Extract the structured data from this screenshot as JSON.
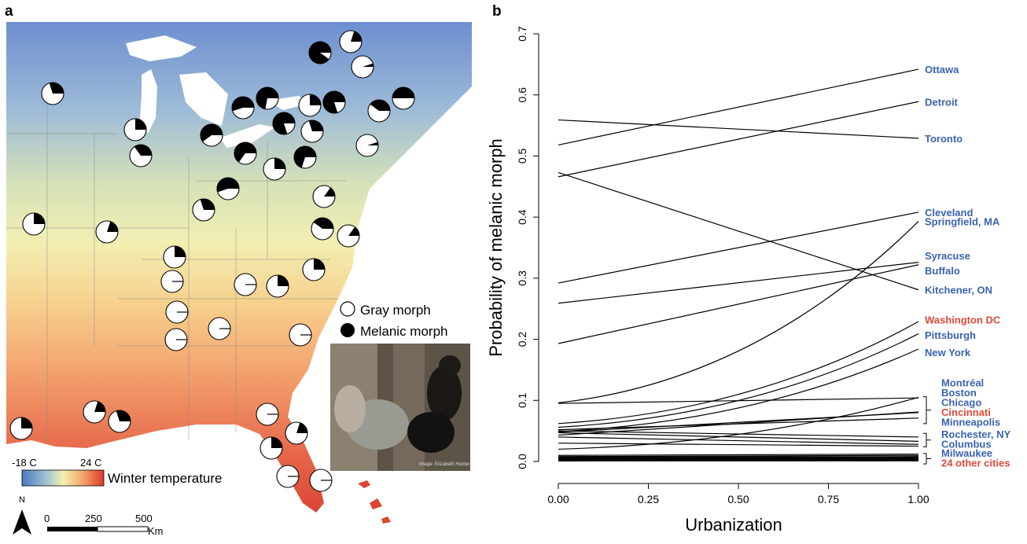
{
  "panel_a": {
    "letter": "a",
    "legend": {
      "gray_label": "Gray morph",
      "melanic_label": "Melanic morph"
    },
    "colorbar": {
      "min_label": "-18 C",
      "max_label": "24 C",
      "title": "Winter temperature",
      "colors": [
        "#4a78c0",
        "#f5f0b0",
        "#dd3a2a"
      ]
    },
    "north_label": "N",
    "scalebar": {
      "labels": [
        "0",
        "250",
        "500"
      ],
      "unit": "Km"
    },
    "photo_credit": "Image: Elizabeth Hunter",
    "sites_melanic_fraction": [
      0.9,
      0.2,
      0.05,
      0.72,
      0.55,
      0.6,
      0.8,
      0.25,
      0.8,
      0.4,
      0.5,
      0.3,
      0.05,
      0.65,
      0.25,
      0.7,
      0.55,
      0.3,
      0.15,
      0.3,
      0.25,
      0.35,
      0.4,
      0.15,
      0.2,
      0.25,
      0.25,
      0.2,
      0.3,
      0.25,
      0.2,
      0.25,
      0.25,
      0.25,
      0.0,
      0.0,
      0.0,
      0.0,
      0.0,
      0.0,
      0.0,
      0.0,
      0.0,
      0.0,
      0.0,
      0.0,
      0.0,
      0.0,
      0.0,
      0.0
    ]
  },
  "chart_data": {
    "letter": "b",
    "type": "line",
    "xlabel": "Urbanization",
    "ylabel": "Probability of melanic morph",
    "xlim": [
      0,
      1
    ],
    "ylim": [
      0,
      0.7
    ],
    "xticks": [
      "0.00",
      "0.25",
      "0.50",
      "0.75",
      "1.00"
    ],
    "yticks": [
      "0.0",
      "0.1",
      "0.2",
      "0.3",
      "0.4",
      "0.5",
      "0.6",
      "0.7"
    ],
    "series": [
      {
        "x": [
          0,
          1
        ],
        "y": [
          0.518,
          0.642
        ],
        "curve": "linear"
      },
      {
        "x": [
          0,
          1
        ],
        "y": [
          0.466,
          0.589
        ],
        "curve": "linear"
      },
      {
        "x": [
          0,
          1
        ],
        "y": [
          0.559,
          0.529
        ],
        "curve": "linear"
      },
      {
        "x": [
          0,
          1
        ],
        "y": [
          0.292,
          0.408
        ],
        "curve": "linear"
      },
      {
        "x": [
          0,
          1
        ],
        "y": [
          0.096,
          0.393
        ],
        "curve": "convex"
      },
      {
        "x": [
          0,
          1
        ],
        "y": [
          0.259,
          0.326
        ],
        "curve": "linear"
      },
      {
        "x": [
          0,
          1
        ],
        "y": [
          0.193,
          0.322
        ],
        "curve": "linear"
      },
      {
        "x": [
          0,
          1
        ],
        "y": [
          0.473,
          0.281
        ],
        "curve": "linear"
      },
      {
        "x": [
          0,
          1
        ],
        "y": [
          0.062,
          0.229
        ],
        "curve": "convex"
      },
      {
        "x": [
          0,
          1
        ],
        "y": [
          0.056,
          0.209
        ],
        "curve": "convex"
      },
      {
        "x": [
          0,
          1
        ],
        "y": [
          0.049,
          0.184
        ],
        "curve": "convex"
      },
      {
        "x": [
          0,
          1
        ],
        "y": [
          0.095,
          0.104
        ],
        "curve": "linear"
      },
      {
        "x": [
          0,
          1
        ],
        "y": [
          0.048,
          0.08
        ],
        "curve": "linear"
      },
      {
        "x": [
          0,
          1
        ],
        "y": [
          0.043,
          0.081
        ],
        "curve": "linear"
      },
      {
        "x": [
          0,
          1
        ],
        "y": [
          0.02,
          0.105
        ],
        "curve": "convex"
      },
      {
        "x": [
          0,
          1
        ],
        "y": [
          0.052,
          0.071
        ],
        "curve": "linear"
      },
      {
        "x": [
          0,
          1
        ],
        "y": [
          0.05,
          0.04
        ],
        "curve": "linear"
      },
      {
        "x": [
          0,
          1
        ],
        "y": [
          0.047,
          0.033
        ],
        "curve": "linear"
      },
      {
        "x": [
          0,
          1
        ],
        "y": [
          0.04,
          0.028
        ],
        "curve": "linear"
      },
      {
        "x": [
          0,
          1
        ],
        "y": [
          0.03,
          0.025
        ],
        "curve": "linear"
      },
      {
        "x": [
          0,
          1
        ],
        "y": [
          0.01,
          0.012
        ],
        "curve": "linear"
      },
      {
        "x": [
          0,
          1
        ],
        "y": [
          0.008,
          0.01
        ],
        "curve": "linear"
      },
      {
        "x": [
          0,
          1
        ],
        "y": [
          0.007,
          0.008
        ],
        "curve": "linear"
      },
      {
        "x": [
          0,
          1
        ],
        "y": [
          0.006,
          0.007
        ],
        "curve": "linear"
      },
      {
        "x": [
          0,
          1
        ],
        "y": [
          0.005,
          0.006
        ],
        "curve": "linear"
      },
      {
        "x": [
          0,
          1
        ],
        "y": [
          0.005,
          0.004
        ],
        "curve": "linear"
      },
      {
        "x": [
          0,
          1
        ],
        "y": [
          0.004,
          0.005
        ],
        "curve": "linear"
      },
      {
        "x": [
          0,
          1
        ],
        "y": [
          0.004,
          0.003
        ],
        "curve": "linear"
      },
      {
        "x": [
          0,
          1
        ],
        "y": [
          0.003,
          0.004
        ],
        "curve": "linear"
      },
      {
        "x": [
          0,
          1
        ],
        "y": [
          0.003,
          0.002
        ],
        "curve": "linear"
      },
      {
        "x": [
          0,
          1
        ],
        "y": [
          0.002,
          0.003
        ],
        "curve": "linear"
      },
      {
        "x": [
          0,
          1
        ],
        "y": [
          0.002,
          0.002
        ],
        "curve": "linear"
      },
      {
        "x": [
          0,
          1
        ],
        "y": [
          0.001,
          0.002
        ],
        "curve": "linear"
      },
      {
        "x": [
          0,
          1
        ],
        "y": [
          0.001,
          0.001
        ],
        "curve": "linear"
      }
    ],
    "city_labels": [
      {
        "text": "Ottawa",
        "y": 0.642,
        "color": "#3b63b0"
      },
      {
        "text": "Detroit",
        "y": 0.589,
        "color": "#3b63b0"
      },
      {
        "text": "Toronto",
        "y": 0.529,
        "color": "#3b63b0"
      },
      {
        "text": "Cleveland",
        "y": 0.408,
        "color": "#3b63b0"
      },
      {
        "text": "Springfield, MA",
        "y": 0.393,
        "color": "#3b63b0"
      },
      {
        "text": "Syracuse",
        "y": 0.337,
        "color": "#3b63b0"
      },
      {
        "text": "Buffalo",
        "y": 0.313,
        "color": "#3b63b0"
      },
      {
        "text": "Kitchener, ON",
        "y": 0.281,
        "color": "#3b63b0"
      },
      {
        "text": "Washington DC",
        "y": 0.232,
        "color": "#dd4a3a"
      },
      {
        "text": "Pittsburgh",
        "y": 0.207,
        "color": "#3b63b0"
      },
      {
        "text": "New York",
        "y": 0.179,
        "color": "#3b63b0"
      },
      {
        "text": "Montréal",
        "y": 0.129,
        "color": "#3b63b0"
      },
      {
        "text": "Boston",
        "y": 0.113,
        "color": "#3b63b0"
      },
      {
        "text": "Chicago",
        "y": 0.097,
        "color": "#3b63b0"
      },
      {
        "text": "Cincinnati",
        "y": 0.081,
        "color": "#dd4a3a"
      },
      {
        "text": "Minneapolis",
        "y": 0.065,
        "color": "#3b63b0"
      },
      {
        "text": "Rochester, NY",
        "y": 0.045,
        "color": "#3b63b0"
      },
      {
        "text": "Columbus",
        "y": 0.029,
        "color": "#3b63b0"
      },
      {
        "text": "Milwaukee",
        "y": 0.014,
        "color": "#3b63b0"
      },
      {
        "text": "24 other cities",
        "y": -0.002,
        "color": "#dd4a3a"
      }
    ],
    "brackets": [
      [
        0.062,
        0.106
      ],
      [
        0.024,
        0.046
      ],
      [
        -0.004,
        0.013
      ]
    ]
  }
}
